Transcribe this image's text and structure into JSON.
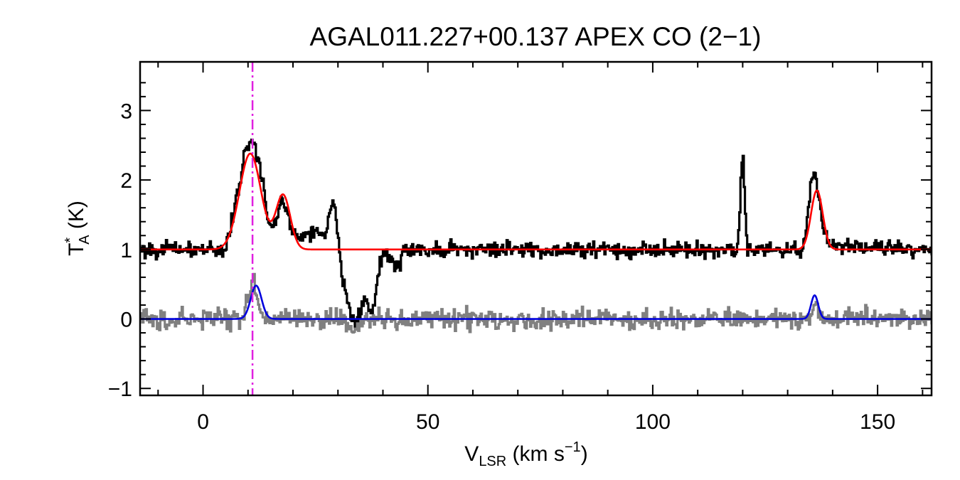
{
  "chart_data": {
    "type": "line",
    "title": "AGAL011.227+00.137  APEX CO (2−1)",
    "xlabel": {
      "main": "V",
      "sub": "LSR",
      "rest": " (km s",
      "sup": "−1",
      "close": ")"
    },
    "ylabel": {
      "main": "T",
      "sup": "*",
      "sub": "A",
      "rest": " (K)"
    },
    "xlim": [
      -14,
      162
    ],
    "ylim": [
      -1.1,
      3.7
    ],
    "x_ticks": [
      0,
      50,
      100,
      150
    ],
    "x_tick_labels": [
      "0",
      "50",
      "100",
      "150"
    ],
    "y_ticks": [
      -1,
      0,
      1,
      2,
      3
    ],
    "y_tick_labels": [
      "−1",
      "0",
      "1",
      "2",
      "3"
    ],
    "grid": false,
    "legend": "none",
    "vline": {
      "x": 11,
      "color": "#e020e0",
      "style": "dash-dot"
    },
    "series": [
      {
        "role": "spectrum",
        "color": "#000000",
        "style": "histogram",
        "noise_amplitude": 0.07,
        "baseline": 1.0,
        "points": [
          [
            -14,
            1.0
          ],
          [
            5,
            1.0
          ],
          [
            6,
            1.3
          ],
          [
            8,
            1.9
          ],
          [
            9,
            2.3
          ],
          [
            10,
            2.5
          ],
          [
            11,
            2.6
          ],
          [
            12,
            2.35
          ],
          [
            13,
            2.1
          ],
          [
            14,
            1.6
          ],
          [
            15,
            1.3
          ],
          [
            16,
            1.35
          ],
          [
            17,
            1.65
          ],
          [
            18,
            1.7
          ],
          [
            19,
            1.45
          ],
          [
            20,
            1.25
          ],
          [
            22,
            1.2
          ],
          [
            25,
            1.25
          ],
          [
            27,
            1.2
          ],
          [
            28,
            1.45
          ],
          [
            29,
            1.8
          ],
          [
            30,
            1.25
          ],
          [
            31,
            0.6
          ],
          [
            32,
            0.3
          ],
          [
            33,
            0.0
          ],
          [
            34,
            -0.05
          ],
          [
            35,
            0.05
          ],
          [
            36,
            0.3
          ],
          [
            37,
            0.1
          ],
          [
            38,
            0.15
          ],
          [
            39,
            0.7
          ],
          [
            40,
            0.95
          ],
          [
            41,
            0.9
          ],
          [
            42,
            0.8
          ],
          [
            43,
            0.75
          ],
          [
            44,
            0.85
          ],
          [
            45,
            1.0
          ],
          [
            119,
            1.0
          ],
          [
            120,
            2.55
          ],
          [
            121,
            1.0
          ],
          [
            133,
            1.0
          ],
          [
            134,
            1.2
          ],
          [
            135,
            1.9
          ],
          [
            136,
            2.2
          ],
          [
            137,
            1.7
          ],
          [
            138,
            1.3
          ],
          [
            139,
            1.05
          ],
          [
            162,
            1.0
          ]
        ]
      },
      {
        "role": "residual",
        "color": "#808080",
        "style": "histogram",
        "noise_amplitude": 0.09,
        "baseline": 0.0,
        "points": [
          [
            -14,
            0.0
          ],
          [
            9,
            0.0
          ],
          [
            10,
            0.3
          ],
          [
            11,
            0.55
          ],
          [
            12,
            0.35
          ],
          [
            13,
            0.05
          ],
          [
            14,
            0.0
          ],
          [
            32,
            0.0
          ],
          [
            33,
            -0.15
          ],
          [
            34,
            -0.2
          ],
          [
            35,
            -0.1
          ],
          [
            36,
            0.0
          ],
          [
            135,
            0.0
          ],
          [
            136,
            0.3
          ],
          [
            137,
            0.05
          ],
          [
            138,
            0.0
          ],
          [
            162,
            0.0
          ]
        ]
      },
      {
        "role": "fit",
        "color": "#ff0000",
        "style": "smooth",
        "baseline": 1.0,
        "gaussians": [
          {
            "amp": 1.38,
            "center": 10.5,
            "sigma": 2.4
          },
          {
            "amp": 0.78,
            "center": 17.8,
            "sigma": 1.6
          },
          {
            "amp": 0.85,
            "center": 136.5,
            "sigma": 1.3
          }
        ]
      },
      {
        "role": "fit",
        "color": "#0000dd",
        "style": "smooth",
        "baseline": 0.0,
        "gaussians": [
          {
            "amp": 0.48,
            "center": 11.8,
            "sigma": 1.2
          },
          {
            "amp": 0.34,
            "center": 136.0,
            "sigma": 0.8
          }
        ]
      }
    ]
  }
}
